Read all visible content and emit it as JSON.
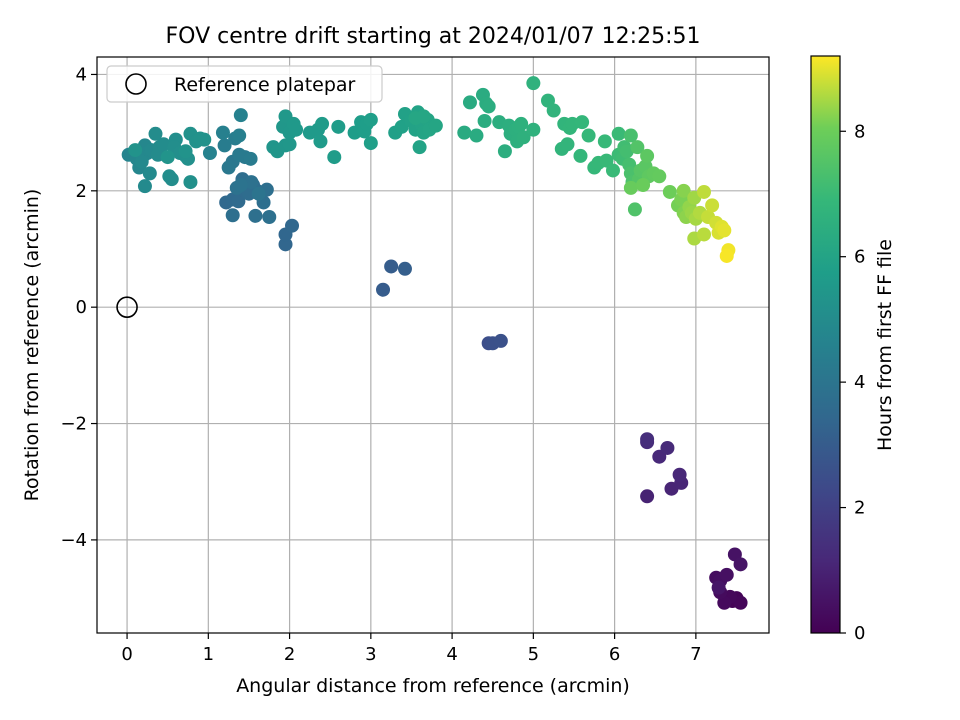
{
  "chart_data": {
    "type": "scatter",
    "title": "FOV centre drift starting at 2024/01/07 12:25:51",
    "xlabel": "Angular distance from reference (arcmin)",
    "ylabel": "Rotation from reference (arcmin)",
    "xlim": [
      -0.37,
      7.9
    ],
    "ylim": [
      -5.6,
      4.3
    ],
    "xticks": [
      0,
      1,
      2,
      3,
      4,
      5,
      6,
      7
    ],
    "yticks": [
      -4,
      -2,
      0,
      2,
      4
    ],
    "xtick_labels": [
      "0",
      "1",
      "2",
      "3",
      "4",
      "5",
      "6",
      "7"
    ],
    "ytick_labels": [
      "−4",
      "−2",
      "0",
      "2",
      "4"
    ],
    "grid": true,
    "colormap": "viridis",
    "legend": {
      "placement": "top-left",
      "label": "Reference platepar"
    },
    "reference_point": {
      "x": 0,
      "y": 0
    },
    "colorbar": {
      "label": "Hours from first FF file",
      "range": [
        0,
        9.2
      ],
      "ticks": [
        0,
        2,
        4,
        6,
        8
      ],
      "tick_labels": [
        "0",
        "2",
        "4",
        "6",
        "8"
      ]
    },
    "points": [
      {
        "x": 7.45,
        "y": -5.05,
        "c": 0.05
      },
      {
        "x": 7.5,
        "y": -5.0,
        "c": 0.1
      },
      {
        "x": 7.55,
        "y": -5.08,
        "c": 0.15
      },
      {
        "x": 7.42,
        "y": -4.98,
        "c": 0.2
      },
      {
        "x": 7.35,
        "y": -5.08,
        "c": 0.25
      },
      {
        "x": 7.3,
        "y": -4.9,
        "c": 0.3
      },
      {
        "x": 7.25,
        "y": -4.65,
        "c": 0.35
      },
      {
        "x": 7.3,
        "y": -4.7,
        "c": 0.4
      },
      {
        "x": 7.38,
        "y": -4.6,
        "c": 0.45
      },
      {
        "x": 7.48,
        "y": -4.25,
        "c": 0.5
      },
      {
        "x": 7.55,
        "y": -4.42,
        "c": 0.55
      },
      {
        "x": 7.28,
        "y": -4.82,
        "c": 0.6
      },
      {
        "x": 6.4,
        "y": -3.25,
        "c": 1.0
      },
      {
        "x": 6.7,
        "y": -3.12,
        "c": 1.05
      },
      {
        "x": 6.82,
        "y": -3.02,
        "c": 1.1
      },
      {
        "x": 6.8,
        "y": -2.88,
        "c": 1.15
      },
      {
        "x": 6.55,
        "y": -2.57,
        "c": 1.2
      },
      {
        "x": 6.65,
        "y": -2.42,
        "c": 1.25
      },
      {
        "x": 6.4,
        "y": -2.32,
        "c": 1.3
      },
      {
        "x": 6.4,
        "y": -2.27,
        "c": 1.35
      },
      {
        "x": 4.45,
        "y": -0.62,
        "c": 2.5
      },
      {
        "x": 4.5,
        "y": -0.62,
        "c": 2.55
      },
      {
        "x": 4.6,
        "y": -0.58,
        "c": 2.6
      },
      {
        "x": 3.15,
        "y": 0.3,
        "c": 3.0
      },
      {
        "x": 3.25,
        "y": 0.7,
        "c": 3.05
      },
      {
        "x": 3.42,
        "y": 0.66,
        "c": 3.1
      },
      {
        "x": 1.95,
        "y": 1.08,
        "c": 3.4
      },
      {
        "x": 1.95,
        "y": 1.25,
        "c": 3.42
      },
      {
        "x": 2.03,
        "y": 1.4,
        "c": 3.45
      },
      {
        "x": 1.22,
        "y": 1.8,
        "c": 3.5
      },
      {
        "x": 1.3,
        "y": 1.85,
        "c": 3.55
      },
      {
        "x": 1.37,
        "y": 1.82,
        "c": 3.58
      },
      {
        "x": 1.45,
        "y": 2.0,
        "c": 3.6
      },
      {
        "x": 1.55,
        "y": 2.1,
        "c": 3.62
      },
      {
        "x": 1.6,
        "y": 2.0,
        "c": 3.65
      },
      {
        "x": 1.5,
        "y": 1.95,
        "c": 3.68
      },
      {
        "x": 1.42,
        "y": 2.2,
        "c": 3.7
      },
      {
        "x": 1.68,
        "y": 1.8,
        "c": 3.72
      },
      {
        "x": 1.72,
        "y": 2.02,
        "c": 3.75
      },
      {
        "x": 1.3,
        "y": 1.58,
        "c": 3.78
      },
      {
        "x": 1.58,
        "y": 1.57,
        "c": 3.8
      },
      {
        "x": 1.75,
        "y": 1.55,
        "c": 3.82
      },
      {
        "x": 1.53,
        "y": 2.15,
        "c": 3.85
      },
      {
        "x": 1.35,
        "y": 2.05,
        "c": 3.9
      },
      {
        "x": 1.4,
        "y": 2.1,
        "c": 3.95
      },
      {
        "x": 1.62,
        "y": 1.95,
        "c": 4.0
      },
      {
        "x": 1.3,
        "y": 2.5,
        "c": 4.1
      },
      {
        "x": 1.25,
        "y": 2.4,
        "c": 4.15
      },
      {
        "x": 1.45,
        "y": 2.58,
        "c": 4.2
      },
      {
        "x": 1.38,
        "y": 2.62,
        "c": 4.25
      },
      {
        "x": 1.52,
        "y": 2.55,
        "c": 4.3
      },
      {
        "x": 1.2,
        "y": 2.78,
        "c": 4.35
      },
      {
        "x": 1.33,
        "y": 2.9,
        "c": 4.4
      },
      {
        "x": 1.38,
        "y": 2.95,
        "c": 4.45
      },
      {
        "x": 1.18,
        "y": 3.0,
        "c": 4.5
      },
      {
        "x": 1.4,
        "y": 3.3,
        "c": 4.55
      },
      {
        "x": 1.02,
        "y": 2.65,
        "c": 4.6
      },
      {
        "x": 0.02,
        "y": 2.62,
        "c": 4.7
      },
      {
        "x": 0.08,
        "y": 2.65,
        "c": 4.72
      },
      {
        "x": 0.12,
        "y": 2.55,
        "c": 4.75
      },
      {
        "x": 0.15,
        "y": 2.4,
        "c": 4.78
      },
      {
        "x": 0.2,
        "y": 2.6,
        "c": 4.8
      },
      {
        "x": 0.22,
        "y": 2.78,
        "c": 4.82
      },
      {
        "x": 0.25,
        "y": 2.65,
        "c": 4.85
      },
      {
        "x": 0.3,
        "y": 2.7,
        "c": 4.88
      },
      {
        "x": 0.18,
        "y": 2.5,
        "c": 4.9
      },
      {
        "x": 0.28,
        "y": 2.3,
        "c": 4.92
      },
      {
        "x": 0.22,
        "y": 2.08,
        "c": 4.94
      },
      {
        "x": 0.4,
        "y": 2.75,
        "c": 4.96
      },
      {
        "x": 0.38,
        "y": 2.62,
        "c": 4.98
      },
      {
        "x": 0.35,
        "y": 2.98,
        "c": 5.0
      },
      {
        "x": 0.45,
        "y": 2.8,
        "c": 5.02
      },
      {
        "x": 0.52,
        "y": 2.25,
        "c": 5.04
      },
      {
        "x": 0.55,
        "y": 2.2,
        "c": 5.06
      },
      {
        "x": 0.6,
        "y": 2.88,
        "c": 5.08
      },
      {
        "x": 0.58,
        "y": 2.75,
        "c": 5.1
      },
      {
        "x": 0.65,
        "y": 2.65,
        "c": 5.12
      },
      {
        "x": 0.72,
        "y": 2.6,
        "c": 5.14
      },
      {
        "x": 0.75,
        "y": 2.55,
        "c": 5.16
      },
      {
        "x": 0.78,
        "y": 2.15,
        "c": 5.18
      },
      {
        "x": 0.78,
        "y": 2.98,
        "c": 5.2
      },
      {
        "x": 0.85,
        "y": 2.85,
        "c": 5.22
      },
      {
        "x": 0.9,
        "y": 2.9,
        "c": 5.24
      },
      {
        "x": 0.95,
        "y": 2.88,
        "c": 5.26
      },
      {
        "x": 0.72,
        "y": 2.68,
        "c": 5.28
      },
      {
        "x": 0.1,
        "y": 2.7,
        "c": 5.3
      },
      {
        "x": 0.5,
        "y": 2.58,
        "c": 5.32
      },
      {
        "x": 1.8,
        "y": 2.75,
        "c": 5.4
      },
      {
        "x": 1.85,
        "y": 2.68,
        "c": 5.42
      },
      {
        "x": 1.95,
        "y": 2.78,
        "c": 5.44
      },
      {
        "x": 2.0,
        "y": 2.8,
        "c": 5.46
      },
      {
        "x": 1.92,
        "y": 3.1,
        "c": 5.48
      },
      {
        "x": 1.95,
        "y": 3.28,
        "c": 5.5
      },
      {
        "x": 2.0,
        "y": 3.0,
        "c": 5.52
      },
      {
        "x": 2.05,
        "y": 3.15,
        "c": 5.54
      },
      {
        "x": 2.08,
        "y": 3.05,
        "c": 5.56
      },
      {
        "x": 2.25,
        "y": 3.0,
        "c": 5.58
      },
      {
        "x": 2.35,
        "y": 3.05,
        "c": 5.6
      },
      {
        "x": 2.38,
        "y": 2.85,
        "c": 5.62
      },
      {
        "x": 2.4,
        "y": 3.15,
        "c": 5.64
      },
      {
        "x": 2.55,
        "y": 2.58,
        "c": 5.66
      },
      {
        "x": 2.6,
        "y": 3.1,
        "c": 5.68
      },
      {
        "x": 2.8,
        "y": 3.0,
        "c": 5.7
      },
      {
        "x": 2.88,
        "y": 3.18,
        "c": 5.72
      },
      {
        "x": 2.92,
        "y": 3.02,
        "c": 5.74
      },
      {
        "x": 2.95,
        "y": 3.15,
        "c": 5.76
      },
      {
        "x": 3.0,
        "y": 3.22,
        "c": 5.78
      },
      {
        "x": 3.0,
        "y": 2.82,
        "c": 5.8
      },
      {
        "x": 3.3,
        "y": 3.0,
        "c": 5.85
      },
      {
        "x": 3.38,
        "y": 3.1,
        "c": 5.88
      },
      {
        "x": 3.42,
        "y": 3.32,
        "c": 5.9
      },
      {
        "x": 3.5,
        "y": 3.2,
        "c": 5.92
      },
      {
        "x": 3.55,
        "y": 3.05,
        "c": 5.94
      },
      {
        "x": 3.58,
        "y": 3.35,
        "c": 5.96
      },
      {
        "x": 3.6,
        "y": 2.75,
        "c": 5.98
      },
      {
        "x": 3.62,
        "y": 3.15,
        "c": 6.0
      },
      {
        "x": 3.65,
        "y": 3.0,
        "c": 6.02
      },
      {
        "x": 3.7,
        "y": 3.22,
        "c": 6.04
      },
      {
        "x": 3.72,
        "y": 3.05,
        "c": 6.06
      },
      {
        "x": 3.8,
        "y": 3.12,
        "c": 6.08
      },
      {
        "x": 3.55,
        "y": 3.25,
        "c": 6.1
      },
      {
        "x": 3.65,
        "y": 3.28,
        "c": 6.12
      },
      {
        "x": 4.15,
        "y": 3.0,
        "c": 6.3
      },
      {
        "x": 4.22,
        "y": 3.52,
        "c": 6.32
      },
      {
        "x": 4.3,
        "y": 2.95,
        "c": 6.34
      },
      {
        "x": 4.38,
        "y": 3.65,
        "c": 6.36
      },
      {
        "x": 4.4,
        "y": 3.2,
        "c": 6.38
      },
      {
        "x": 4.42,
        "y": 3.5,
        "c": 6.4
      },
      {
        "x": 4.45,
        "y": 3.45,
        "c": 6.42
      },
      {
        "x": 4.58,
        "y": 3.18,
        "c": 6.44
      },
      {
        "x": 4.65,
        "y": 2.68,
        "c": 6.46
      },
      {
        "x": 4.7,
        "y": 3.12,
        "c": 6.48
      },
      {
        "x": 4.72,
        "y": 2.98,
        "c": 6.5
      },
      {
        "x": 4.78,
        "y": 3.05,
        "c": 6.52
      },
      {
        "x": 4.8,
        "y": 2.85,
        "c": 6.54
      },
      {
        "x": 4.82,
        "y": 3.1,
        "c": 6.56
      },
      {
        "x": 4.85,
        "y": 3.15,
        "c": 6.58
      },
      {
        "x": 4.88,
        "y": 2.92,
        "c": 6.6
      },
      {
        "x": 5.0,
        "y": 3.85,
        "c": 6.62
      },
      {
        "x": 5.0,
        "y": 3.05,
        "c": 6.64
      },
      {
        "x": 5.18,
        "y": 3.55,
        "c": 6.7
      },
      {
        "x": 5.25,
        "y": 3.38,
        "c": 6.72
      },
      {
        "x": 5.35,
        "y": 2.72,
        "c": 6.74
      },
      {
        "x": 5.38,
        "y": 3.15,
        "c": 6.76
      },
      {
        "x": 5.42,
        "y": 2.8,
        "c": 6.78
      },
      {
        "x": 5.45,
        "y": 3.08,
        "c": 6.8
      },
      {
        "x": 5.48,
        "y": 3.15,
        "c": 6.82
      },
      {
        "x": 5.58,
        "y": 2.6,
        "c": 6.84
      },
      {
        "x": 5.6,
        "y": 3.18,
        "c": 6.86
      },
      {
        "x": 5.68,
        "y": 2.95,
        "c": 6.88
      },
      {
        "x": 5.75,
        "y": 2.4,
        "c": 6.9
      },
      {
        "x": 5.8,
        "y": 2.48,
        "c": 6.92
      },
      {
        "x": 5.88,
        "y": 2.85,
        "c": 6.94
      },
      {
        "x": 5.9,
        "y": 2.52,
        "c": 6.96
      },
      {
        "x": 5.98,
        "y": 2.35,
        "c": 6.98
      },
      {
        "x": 6.05,
        "y": 2.98,
        "c": 7.0
      },
      {
        "x": 6.05,
        "y": 2.62,
        "c": 7.05
      },
      {
        "x": 6.1,
        "y": 2.55,
        "c": 7.1
      },
      {
        "x": 6.12,
        "y": 2.75,
        "c": 7.15
      },
      {
        "x": 6.15,
        "y": 2.68,
        "c": 7.2
      },
      {
        "x": 6.18,
        "y": 2.45,
        "c": 7.25
      },
      {
        "x": 6.2,
        "y": 2.95,
        "c": 7.3
      },
      {
        "x": 6.2,
        "y": 2.3,
        "c": 7.35
      },
      {
        "x": 6.22,
        "y": 2.15,
        "c": 7.4
      },
      {
        "x": 6.25,
        "y": 1.68,
        "c": 7.45
      },
      {
        "x": 6.28,
        "y": 2.75,
        "c": 7.5
      },
      {
        "x": 6.3,
        "y": 2.2,
        "c": 7.55
      },
      {
        "x": 6.32,
        "y": 2.35,
        "c": 7.6
      },
      {
        "x": 6.38,
        "y": 2.42,
        "c": 7.65
      },
      {
        "x": 6.4,
        "y": 2.6,
        "c": 7.7
      },
      {
        "x": 6.42,
        "y": 2.25,
        "c": 7.75
      },
      {
        "x": 6.48,
        "y": 2.3,
        "c": 7.8
      },
      {
        "x": 6.55,
        "y": 2.25,
        "c": 7.85
      },
      {
        "x": 6.2,
        "y": 2.05,
        "c": 7.9
      },
      {
        "x": 6.35,
        "y": 2.1,
        "c": 7.95
      },
      {
        "x": 6.68,
        "y": 1.98,
        "c": 8.0
      },
      {
        "x": 6.78,
        "y": 1.75,
        "c": 8.1
      },
      {
        "x": 6.82,
        "y": 1.85,
        "c": 8.15
      },
      {
        "x": 6.85,
        "y": 1.62,
        "c": 8.2
      },
      {
        "x": 6.85,
        "y": 2.0,
        "c": 8.25
      },
      {
        "x": 6.88,
        "y": 1.55,
        "c": 8.3
      },
      {
        "x": 6.92,
        "y": 1.72,
        "c": 8.35
      },
      {
        "x": 6.95,
        "y": 1.62,
        "c": 8.4
      },
      {
        "x": 6.98,
        "y": 1.88,
        "c": 8.45
      },
      {
        "x": 7.0,
        "y": 1.52,
        "c": 8.5
      },
      {
        "x": 6.98,
        "y": 1.18,
        "c": 8.55
      },
      {
        "x": 7.05,
        "y": 1.62,
        "c": 8.6
      },
      {
        "x": 7.1,
        "y": 1.25,
        "c": 8.65
      },
      {
        "x": 7.1,
        "y": 1.98,
        "c": 8.7
      },
      {
        "x": 7.15,
        "y": 1.55,
        "c": 8.75
      },
      {
        "x": 7.2,
        "y": 1.75,
        "c": 8.8
      },
      {
        "x": 7.25,
        "y": 1.45,
        "c": 8.85
      },
      {
        "x": 7.28,
        "y": 1.28,
        "c": 8.9
      },
      {
        "x": 7.32,
        "y": 1.38,
        "c": 8.95
      },
      {
        "x": 7.35,
        "y": 1.32,
        "c": 9.0
      },
      {
        "x": 7.4,
        "y": 0.98,
        "c": 9.1
      },
      {
        "x": 7.38,
        "y": 0.88,
        "c": 9.15
      }
    ]
  }
}
